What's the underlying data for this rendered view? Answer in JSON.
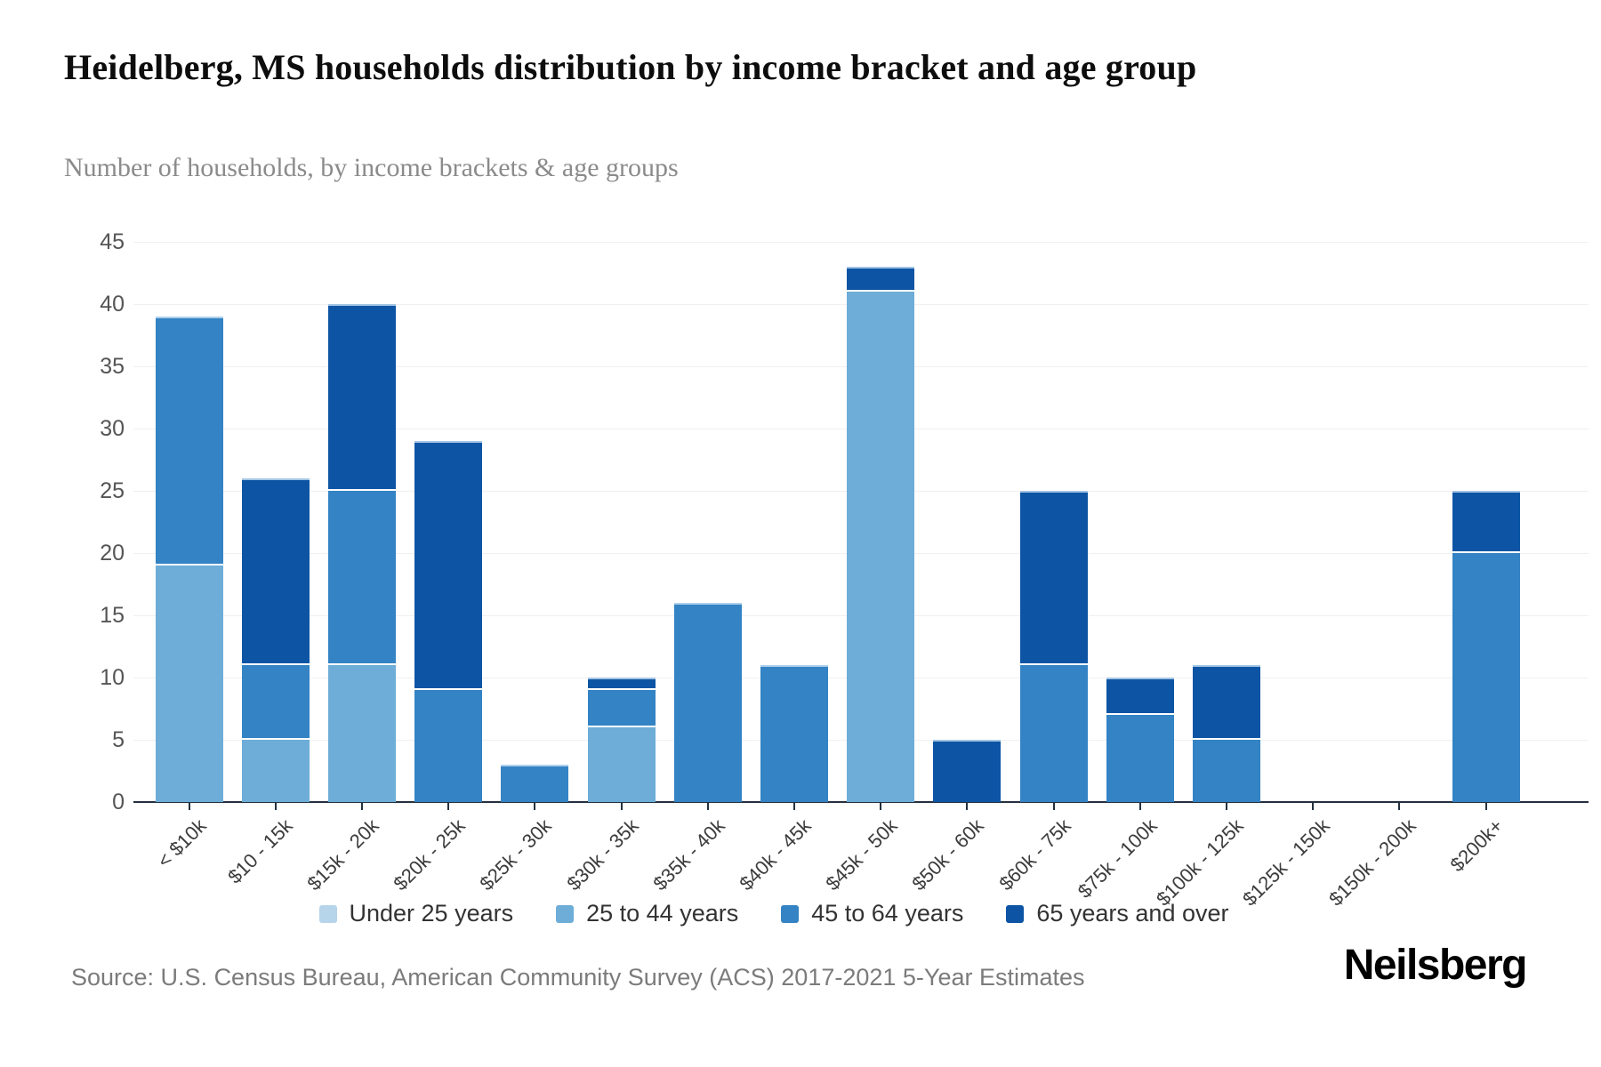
{
  "header": {
    "title": "Heidelberg, MS households distribution by income bracket and age group",
    "subtitle": "Number of households, by income brackets & age groups"
  },
  "footer": {
    "source": "Source: U.S. Census Bureau, American Community Survey (ACS) 2017-2021 5-Year Estimates",
    "brand": "Neilsberg"
  },
  "chart_data": {
    "type": "bar",
    "stacked": true,
    "title": "Heidelberg, MS households distribution by income bracket and age group",
    "subtitle": "Number of households, by income brackets & age groups",
    "categories": [
      "< $10k",
      "$10 - 15k",
      "$15k - 20k",
      "$20k - 25k",
      "$25k - 30k",
      "$30k - 35k",
      "$35k - 40k",
      "$40k - 45k",
      "$45k - 50k",
      "$50k - 60k",
      "$60k - 75k",
      "$75k - 100k",
      "$100k - 125k",
      "$125k - 150k",
      "$150k - 200k",
      "$200k+"
    ],
    "series": [
      {
        "name": "Under 25 years",
        "color": "#b6d4ea",
        "values": [
          0,
          0,
          0,
          0,
          0,
          0,
          0,
          0,
          0,
          0,
          0,
          0,
          0,
          0,
          0,
          0
        ]
      },
      {
        "name": "25 to 44 years",
        "color": "#6dadd8",
        "values": [
          19,
          5,
          11,
          0,
          0,
          6,
          0,
          0,
          41,
          0,
          0,
          0,
          0,
          0,
          0,
          0
        ]
      },
      {
        "name": "45 to 64 years",
        "color": "#3483c4",
        "values": [
          20,
          6,
          14,
          9,
          3,
          3,
          16,
          11,
          0,
          0,
          11,
          7,
          5,
          0,
          0,
          20
        ]
      },
      {
        "name": "65 years and over",
        "color": "#0d55a4",
        "values": [
          0,
          15,
          15,
          20,
          0,
          1,
          0,
          0,
          2,
          5,
          14,
          3,
          6,
          0,
          0,
          5
        ]
      }
    ],
    "totals": [
      39,
      26,
      40,
      29,
      3,
      10,
      16,
      11,
      43,
      5,
      25,
      10,
      11,
      0,
      0,
      25
    ],
    "xlabel": "",
    "ylabel": "",
    "ylim": [
      0,
      45
    ],
    "yticks": [
      0,
      5,
      10,
      15,
      20,
      25,
      30,
      35,
      40,
      45
    ],
    "grid": true,
    "legend_position": "bottom"
  }
}
